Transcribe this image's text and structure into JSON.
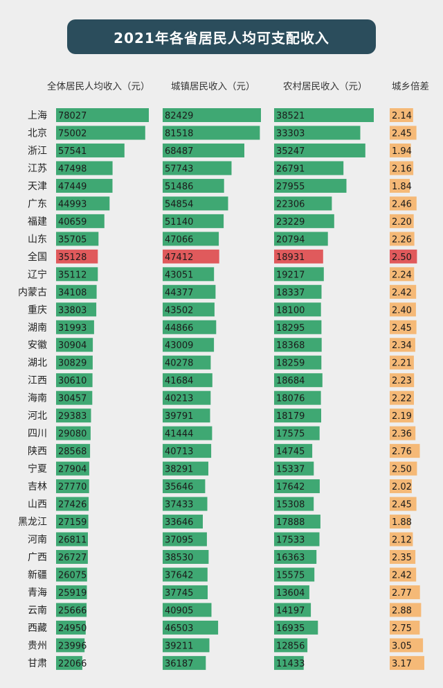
{
  "title": "2021年各省居民人均可支配收入",
  "headers": {
    "total": "全体居民人均收入（元）",
    "urban": "城镇居民收入（元）",
    "rural": "农村居民收入（元）",
    "ratio": "城乡倍差"
  },
  "colors": {
    "title_bg": "#2b4d5c",
    "bar_green": "#3fa873",
    "bar_highlight": "#e05a5c",
    "bar_orange": "#f5b977",
    "ratio_highlight": "#e05a5c"
  },
  "chart_data": {
    "type": "bar",
    "title": "2021年各省居民人均可支配收入",
    "highlight": "全国",
    "categories": [
      "上海",
      "北京",
      "浙江",
      "江苏",
      "天津",
      "广东",
      "福建",
      "山东",
      "全国",
      "辽宁",
      "内蒙古",
      "重庆",
      "湖南",
      "安徽",
      "湖北",
      "江西",
      "海南",
      "河北",
      "四川",
      "陕西",
      "宁夏",
      "吉林",
      "山西",
      "黑龙江",
      "河南",
      "广西",
      "新疆",
      "青海",
      "云南",
      "西藏",
      "贵州",
      "甘肃"
    ],
    "series": [
      {
        "name": "全体居民人均收入（元）",
        "values": [
          78027,
          75002,
          57541,
          47498,
          47449,
          44993,
          40659,
          35705,
          35128,
          35112,
          34108,
          33803,
          31993,
          30904,
          30829,
          30610,
          30457,
          29383,
          29080,
          28568,
          27904,
          27770,
          27426,
          27159,
          26811,
          26727,
          26075,
          25919,
          25666,
          24950,
          23996,
          22066
        ]
      },
      {
        "name": "城镇居民收入（元）",
        "values": [
          82429,
          81518,
          68487,
          57743,
          51486,
          54854,
          51140,
          47066,
          47412,
          43051,
          44377,
          43502,
          44866,
          43009,
          40278,
          41684,
          40213,
          39791,
          41444,
          40713,
          38291,
          35646,
          37433,
          33646,
          37095,
          38530,
          37642,
          37745,
          40905,
          46503,
          39211,
          36187
        ]
      },
      {
        "name": "农村居民收入（元）",
        "values": [
          38521,
          33303,
          35247,
          26791,
          27955,
          22306,
          23229,
          20794,
          18931,
          19217,
          18337,
          18100,
          18295,
          18368,
          18259,
          18684,
          18076,
          18179,
          17575,
          14745,
          15337,
          17642,
          15308,
          17888,
          17533,
          16363,
          15575,
          13604,
          14197,
          16935,
          12856,
          11433
        ]
      },
      {
        "name": "城乡倍差",
        "values": [
          "2.14",
          "2.45",
          "1.94",
          "2.16",
          "1.84",
          "2.46",
          "2.20",
          "2.26",
          "2.50",
          "2.24",
          "2.42",
          "2.40",
          "2.45",
          "2.34",
          "2.21",
          "2.23",
          "2.22",
          "2.19",
          "2.36",
          "2.76",
          "2.50",
          "2.02",
          "2.45",
          "1.88",
          "2.12",
          "2.35",
          "2.42",
          "2.77",
          "2.88",
          "2.75",
          "3.05",
          "3.17"
        ]
      }
    ]
  }
}
